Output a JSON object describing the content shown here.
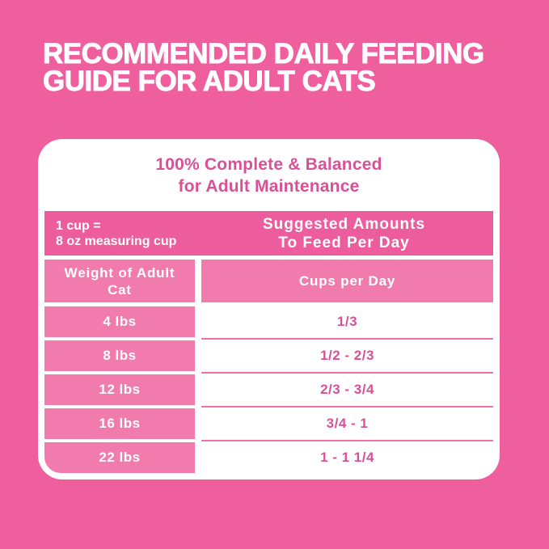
{
  "headline": {
    "line1": "RECOMMENDED DAILY FEEDING",
    "line2": "GUIDE FOR ADULT CATS"
  },
  "card": {
    "title_line1": "100% Complete & Balanced",
    "title_line2": "for Adult Maintenance"
  },
  "table": {
    "note_line1": "1 cup =",
    "note_line2": "8 oz measuring cup",
    "header_right_line1": "Suggested Amounts",
    "header_right_line2": "To Feed Per Day",
    "col1_header": "Weight of Adult Cat",
    "col2_header": "Cups per Day",
    "rows": [
      {
        "weight": "4 lbs",
        "cups": "1/3"
      },
      {
        "weight": "8 lbs",
        "cups": "1/2 - 2/3"
      },
      {
        "weight": "12 lbs",
        "cups": "2/3 - 3/4"
      },
      {
        "weight": "16 lbs",
        "cups": "3/4 - 1"
      },
      {
        "weight": "22 lbs",
        "cups": "1 - 1 1/4"
      }
    ]
  },
  "colors": {
    "page_bg": "#EF5F9E",
    "header_pink": "#ED5C9C",
    "cell_pink": "#F27BAE",
    "text_pink": "#D85197",
    "separator_pink": "#EF6FA7"
  }
}
